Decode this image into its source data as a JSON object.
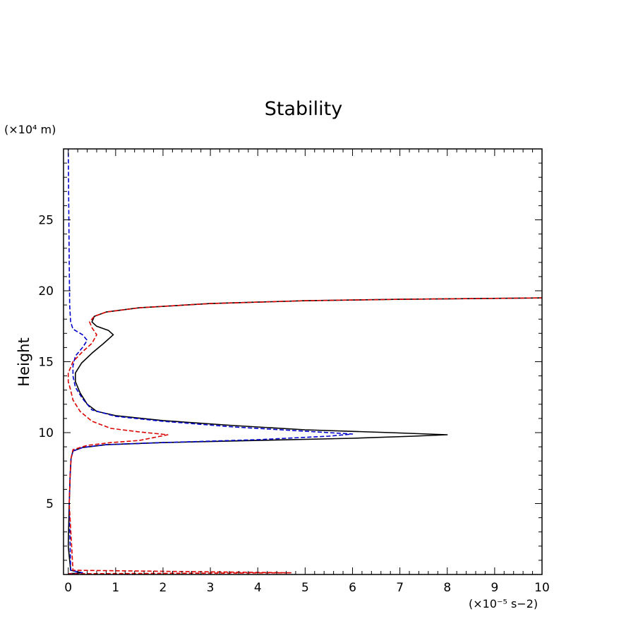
{
  "chart_data": {
    "type": "line",
    "title": "Stability",
    "ylabel": "Height",
    "y_unit": "(×10⁴ m)",
    "x_unit": "(×10⁻⁵ s−2)",
    "xlim": [
      -0.1,
      10
    ],
    "ylim": [
      0,
      30
    ],
    "x_ticks": [
      0,
      1,
      2,
      3,
      4,
      5,
      6,
      7,
      8,
      9,
      10
    ],
    "y_ticks": [
      5,
      10,
      15,
      20,
      25
    ],
    "x_tick_labels": [
      "0",
      "1",
      "2",
      "3",
      "4",
      "5",
      "6",
      "7",
      "8",
      "9",
      "10"
    ],
    "y_tick_labels": [
      "5",
      "10",
      "15",
      "20",
      "25"
    ],
    "grid": false,
    "legend": "none",
    "series": [
      {
        "color": "#000000",
        "dash": "solid",
        "points": [
          [
            0.0,
            0.05
          ],
          [
            0.3,
            0.12
          ],
          [
            0.05,
            0.3
          ],
          [
            0.0,
            2
          ],
          [
            0.02,
            5
          ],
          [
            0.04,
            7
          ],
          [
            0.06,
            8.2
          ],
          [
            0.1,
            8.7
          ],
          [
            0.3,
            8.95
          ],
          [
            0.8,
            9.15
          ],
          [
            2.0,
            9.3
          ],
          [
            4.0,
            9.45
          ],
          [
            6.0,
            9.6
          ],
          [
            7.3,
            9.75
          ],
          [
            8.0,
            9.85
          ],
          [
            6.8,
            10.0
          ],
          [
            5.0,
            10.2
          ],
          [
            3.5,
            10.5
          ],
          [
            2.0,
            10.85
          ],
          [
            1.0,
            11.2
          ],
          [
            0.6,
            11.5
          ],
          [
            0.4,
            12.0
          ],
          [
            0.25,
            12.8
          ],
          [
            0.15,
            13.6
          ],
          [
            0.15,
            14.2
          ],
          [
            0.28,
            14.9
          ],
          [
            0.5,
            15.6
          ],
          [
            0.75,
            16.3
          ],
          [
            0.95,
            16.9
          ],
          [
            0.85,
            17.2
          ],
          [
            0.6,
            17.5
          ],
          [
            0.5,
            17.8
          ],
          [
            0.55,
            18.2
          ],
          [
            0.8,
            18.5
          ],
          [
            1.5,
            18.8
          ],
          [
            3.0,
            19.1
          ],
          [
            5.0,
            19.3
          ],
          [
            7.0,
            19.4
          ],
          [
            10.0,
            19.5
          ]
        ]
      },
      {
        "color": "#0000cc",
        "dash": "dashed",
        "points": [
          [
            0.0,
            0.05
          ],
          [
            0.3,
            0.12
          ],
          [
            0.05,
            0.3
          ],
          [
            0.02,
            5
          ],
          [
            0.04,
            7
          ],
          [
            0.06,
            8.2
          ],
          [
            0.1,
            8.7
          ],
          [
            0.3,
            8.95
          ],
          [
            0.8,
            9.15
          ],
          [
            2.0,
            9.3
          ],
          [
            4.0,
            9.5
          ],
          [
            5.5,
            9.75
          ],
          [
            6.0,
            9.9
          ],
          [
            5.0,
            10.1
          ],
          [
            3.5,
            10.4
          ],
          [
            2.0,
            10.8
          ],
          [
            1.0,
            11.15
          ],
          [
            0.5,
            11.6
          ],
          [
            0.3,
            12.4
          ],
          [
            0.15,
            13.2
          ],
          [
            0.1,
            14.0
          ],
          [
            0.1,
            14.7
          ],
          [
            0.15,
            15.4
          ],
          [
            0.3,
            16.0
          ],
          [
            0.4,
            16.5
          ],
          [
            0.3,
            16.9
          ],
          [
            0.1,
            17.3
          ],
          [
            0.05,
            17.8
          ],
          [
            0.03,
            19
          ],
          [
            0.02,
            22
          ],
          [
            0.01,
            26
          ],
          [
            0.0,
            30
          ]
        ]
      },
      {
        "color": "#dd0000",
        "dash": "dashed",
        "points": [
          [
            0.0,
            0.05
          ],
          [
            4.7,
            0.12
          ],
          [
            0.1,
            0.3
          ],
          [
            0.02,
            5
          ],
          [
            0.04,
            7
          ],
          [
            0.06,
            8.2
          ],
          [
            0.1,
            8.8
          ],
          [
            0.4,
            9.1
          ],
          [
            0.9,
            9.3
          ],
          [
            1.5,
            9.45
          ],
          [
            2.1,
            9.85
          ],
          [
            1.5,
            10.05
          ],
          [
            0.9,
            10.3
          ],
          [
            0.5,
            10.8
          ],
          [
            0.25,
            11.5
          ],
          [
            0.1,
            12.3
          ],
          [
            0.05,
            13.0
          ],
          [
            0.0,
            13.6
          ],
          [
            0.0,
            14.2
          ],
          [
            0.1,
            15.0
          ],
          [
            0.3,
            15.7
          ],
          [
            0.5,
            16.3
          ],
          [
            0.6,
            16.9
          ],
          [
            0.5,
            17.4
          ],
          [
            0.45,
            17.8
          ],
          [
            0.55,
            18.2
          ],
          [
            0.8,
            18.5
          ],
          [
            1.5,
            18.8
          ],
          [
            3.0,
            19.1
          ],
          [
            5.0,
            19.3
          ],
          [
            7.0,
            19.4
          ],
          [
            10.0,
            19.5
          ]
        ]
      }
    ]
  }
}
